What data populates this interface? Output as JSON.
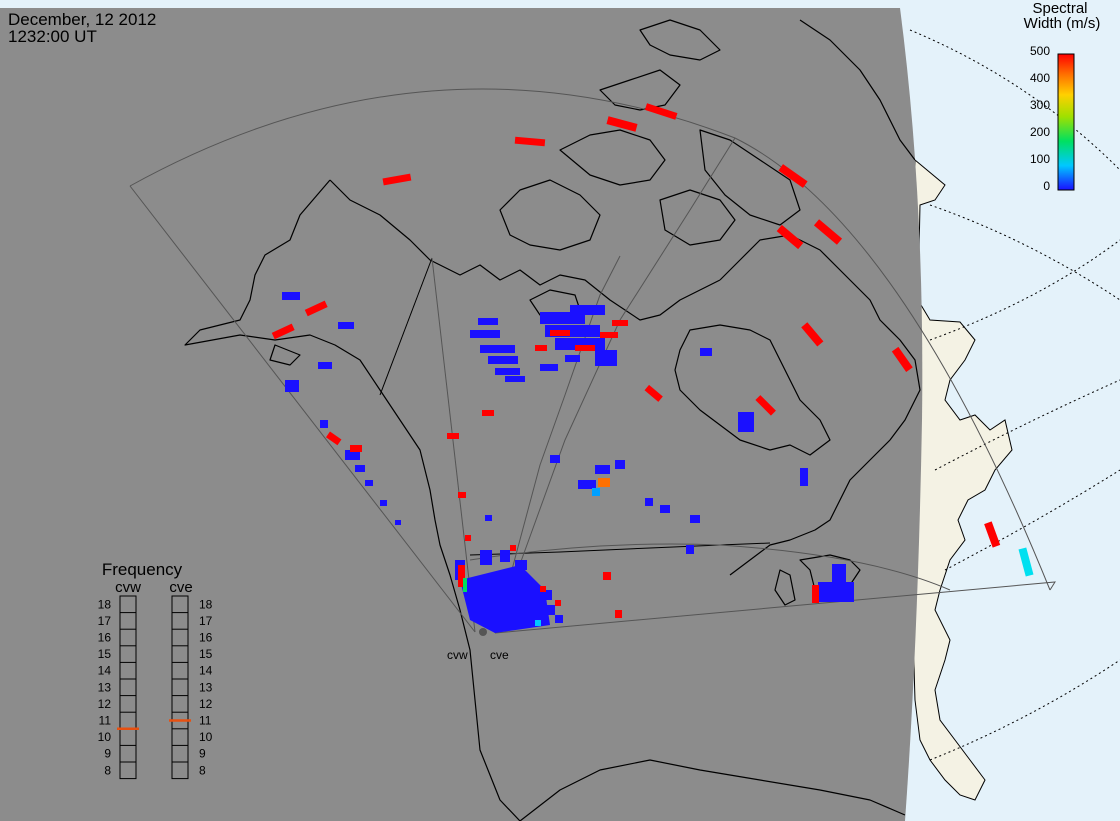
{
  "header": {
    "date": "December, 12 2012",
    "time": "1232:00 UT"
  },
  "colorbar": {
    "title_line1": "Spectral",
    "title_line2": "Width (m/s)",
    "ticks": [
      "500",
      "400",
      "300",
      "200",
      "100",
      "0"
    ],
    "min": 0,
    "max": 500,
    "colors": [
      "#1a10ff",
      "#00c8ff",
      "#00e060",
      "#a0e000",
      "#ffd000",
      "#ff7000",
      "#ff0000"
    ]
  },
  "radars": {
    "site1": "cvw",
    "site2": "cve"
  },
  "frequency": {
    "title": "Frequency",
    "col1": "cvw",
    "col2": "cve",
    "scale": [
      "18",
      "17",
      "16",
      "15",
      "14",
      "13",
      "12",
      "11",
      "10",
      "9",
      "8"
    ],
    "cvw_value": 10.5,
    "cve_value": 11,
    "indicator_color": "#e85010"
  },
  "colors": {
    "night": "#8c8c8c",
    "day_ocean": "#e4f2fa",
    "day_land": "#f4f2e4",
    "low_width": "#1a10ff",
    "high_width": "#ff0000",
    "mid_width": "#00e0f0"
  }
}
